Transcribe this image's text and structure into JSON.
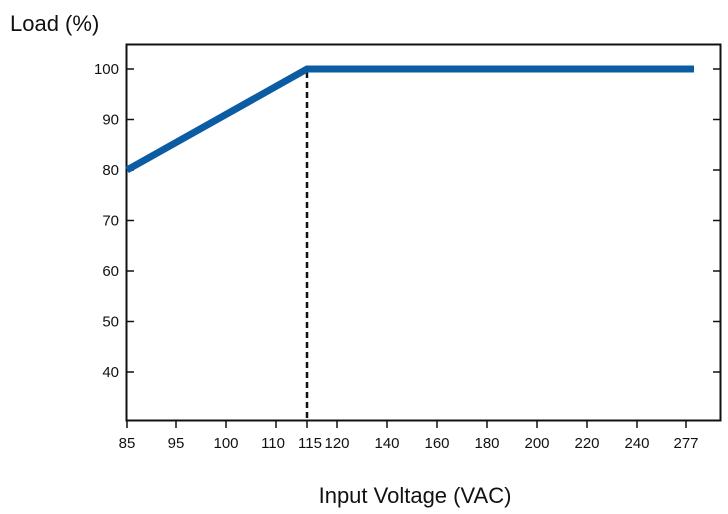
{
  "chart_data": {
    "type": "line",
    "ylabel": "Load (%)",
    "xlabel": "Input Voltage (VAC)",
    "x_ticks": [
      "85",
      "95",
      "100",
      "110",
      "115",
      "120",
      "140",
      "160",
      "180",
      "200",
      "220",
      "240",
      "277"
    ],
    "y_ticks": [
      "40",
      "50",
      "60",
      "70",
      "80",
      "90",
      "100"
    ],
    "ylim": [
      30,
      105
    ],
    "grid": false,
    "series": [
      {
        "points": [
          {
            "x": "85",
            "y": 80
          },
          {
            "x": "115",
            "y": 100
          },
          {
            "x": "277",
            "y": 100
          }
        ]
      }
    ],
    "reference_lines": [
      {
        "orientation": "vertical",
        "x": "115",
        "style": "dashed"
      }
    ],
    "colors": {
      "series": "#0b5ca3",
      "axis": "#111111",
      "reference": "#111111"
    }
  }
}
